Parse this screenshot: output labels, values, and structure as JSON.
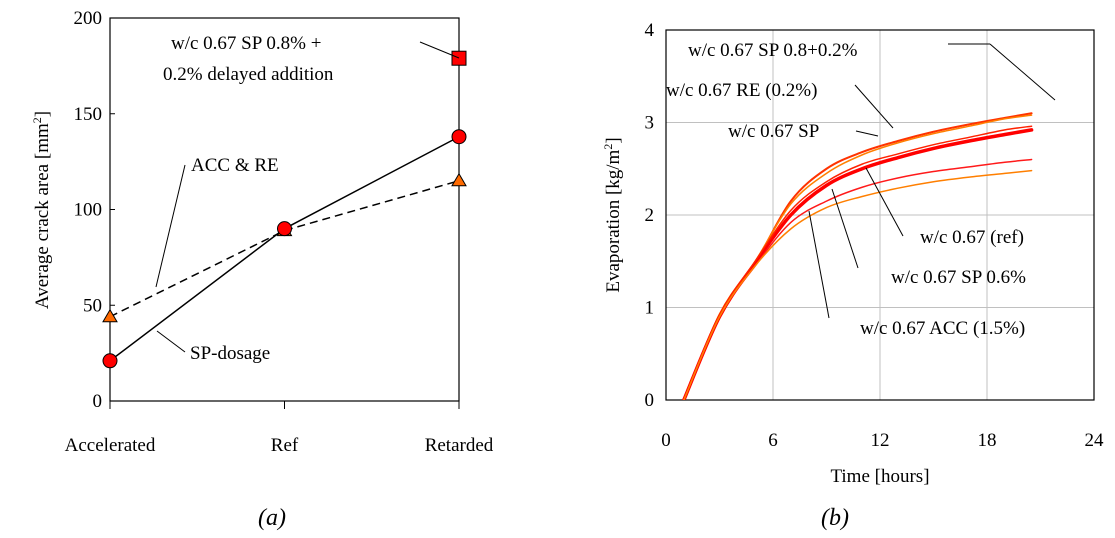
{
  "chart_data": [
    {
      "panel_label": "(a)",
      "type": "line",
      "categories": [
        "Accelerated",
        "Ref",
        "Retarded"
      ],
      "ylabel": "Average crack area [mm²]",
      "ylabel_main": "Average crack area [mm",
      "ylabel_sup": "2",
      "ylabel_tail": "]",
      "ylim": [
        0,
        200
      ],
      "yticks": [
        "0",
        "50",
        "100",
        "150",
        "200"
      ],
      "grid": false,
      "series": [
        {
          "name": "SP-dosage",
          "values": [
            21,
            90,
            138
          ],
          "marker": "circle",
          "linestyle": "solid",
          "color": "#ff0000"
        },
        {
          "name": "ACC & RE",
          "values": [
            44,
            89,
            115
          ],
          "marker": "triangle",
          "linestyle": "dashed",
          "color": "#ff6a00"
        }
      ],
      "extra_point": {
        "category": "Retarded",
        "value": 179,
        "marker": "square",
        "color": "#ff0000",
        "label_line1": "w/c 0.67 SP 0.8% +",
        "label_line2": "0.2% delayed addition"
      }
    },
    {
      "panel_label": "(b)",
      "type": "line",
      "xlabel": "Time [hours]",
      "ylabel": "Evaporation [kg/m²]",
      "ylabel_main": "Evaporation [kg/m",
      "ylabel_sup": "2",
      "ylabel_tail": "]",
      "xlim": [
        0,
        24
      ],
      "ylim": [
        0,
        4
      ],
      "xticks": [
        "0",
        "6",
        "12",
        "18",
        "24"
      ],
      "yticks": [
        "0",
        "1",
        "2",
        "3",
        "4"
      ],
      "grid": true,
      "series": [
        {
          "name": "w/c 0.67 SP 0.8+0.2%",
          "color": "#ff3300",
          "width": 2,
          "x": [
            1,
            3,
            5,
            7,
            9,
            11,
            13,
            15,
            17,
            19,
            20.5
          ],
          "y": [
            0,
            0.92,
            1.48,
            2.15,
            2.5,
            2.68,
            2.8,
            2.9,
            2.98,
            3.05,
            3.1
          ]
        },
        {
          "name": "w/c 0.67 RE (0.2%)",
          "color": "#ff7f00",
          "width": 1.5,
          "x": [
            1,
            3,
            5,
            7,
            9,
            11,
            13,
            15,
            17,
            19,
            20.5
          ],
          "y": [
            0,
            0.93,
            1.5,
            2.12,
            2.45,
            2.65,
            2.78,
            2.88,
            2.96,
            3.04,
            3.08
          ]
        },
        {
          "name": "w/c 0.67 SP",
          "color": "#ff0000",
          "width": 3.5,
          "x": [
            1,
            3,
            5,
            7,
            9,
            11,
            13,
            15,
            17,
            19,
            20.5
          ],
          "y": [
            0,
            0.9,
            1.48,
            2.0,
            2.32,
            2.5,
            2.62,
            2.72,
            2.8,
            2.87,
            2.92
          ]
        },
        {
          "name": "w/c 0.67 (ref)",
          "color": "#ff2200",
          "width": 1.5,
          "x": [
            1,
            3,
            5,
            7,
            9,
            11,
            13,
            15,
            17,
            19,
            20.5
          ],
          "y": [
            0,
            0.92,
            1.5,
            2.05,
            2.36,
            2.55,
            2.66,
            2.76,
            2.84,
            2.92,
            2.96
          ]
        },
        {
          "name": "w/c 0.67 SP 0.6%",
          "color": "#ff1a1a",
          "width": 1.5,
          "x": [
            1,
            3,
            5,
            7,
            9,
            11,
            13,
            15,
            17,
            19,
            20.5
          ],
          "y": [
            0,
            0.9,
            1.45,
            1.92,
            2.15,
            2.3,
            2.4,
            2.47,
            2.52,
            2.57,
            2.6
          ]
        },
        {
          "name": "w/c 0.67 ACC (1.5%)",
          "color": "#ff7f00",
          "width": 1.5,
          "x": [
            1,
            3,
            5,
            7,
            9,
            11,
            13,
            15,
            17,
            19,
            20.5
          ],
          "y": [
            0,
            0.9,
            1.45,
            1.85,
            2.08,
            2.2,
            2.29,
            2.36,
            2.41,
            2.45,
            2.48
          ]
        }
      ]
    }
  ]
}
